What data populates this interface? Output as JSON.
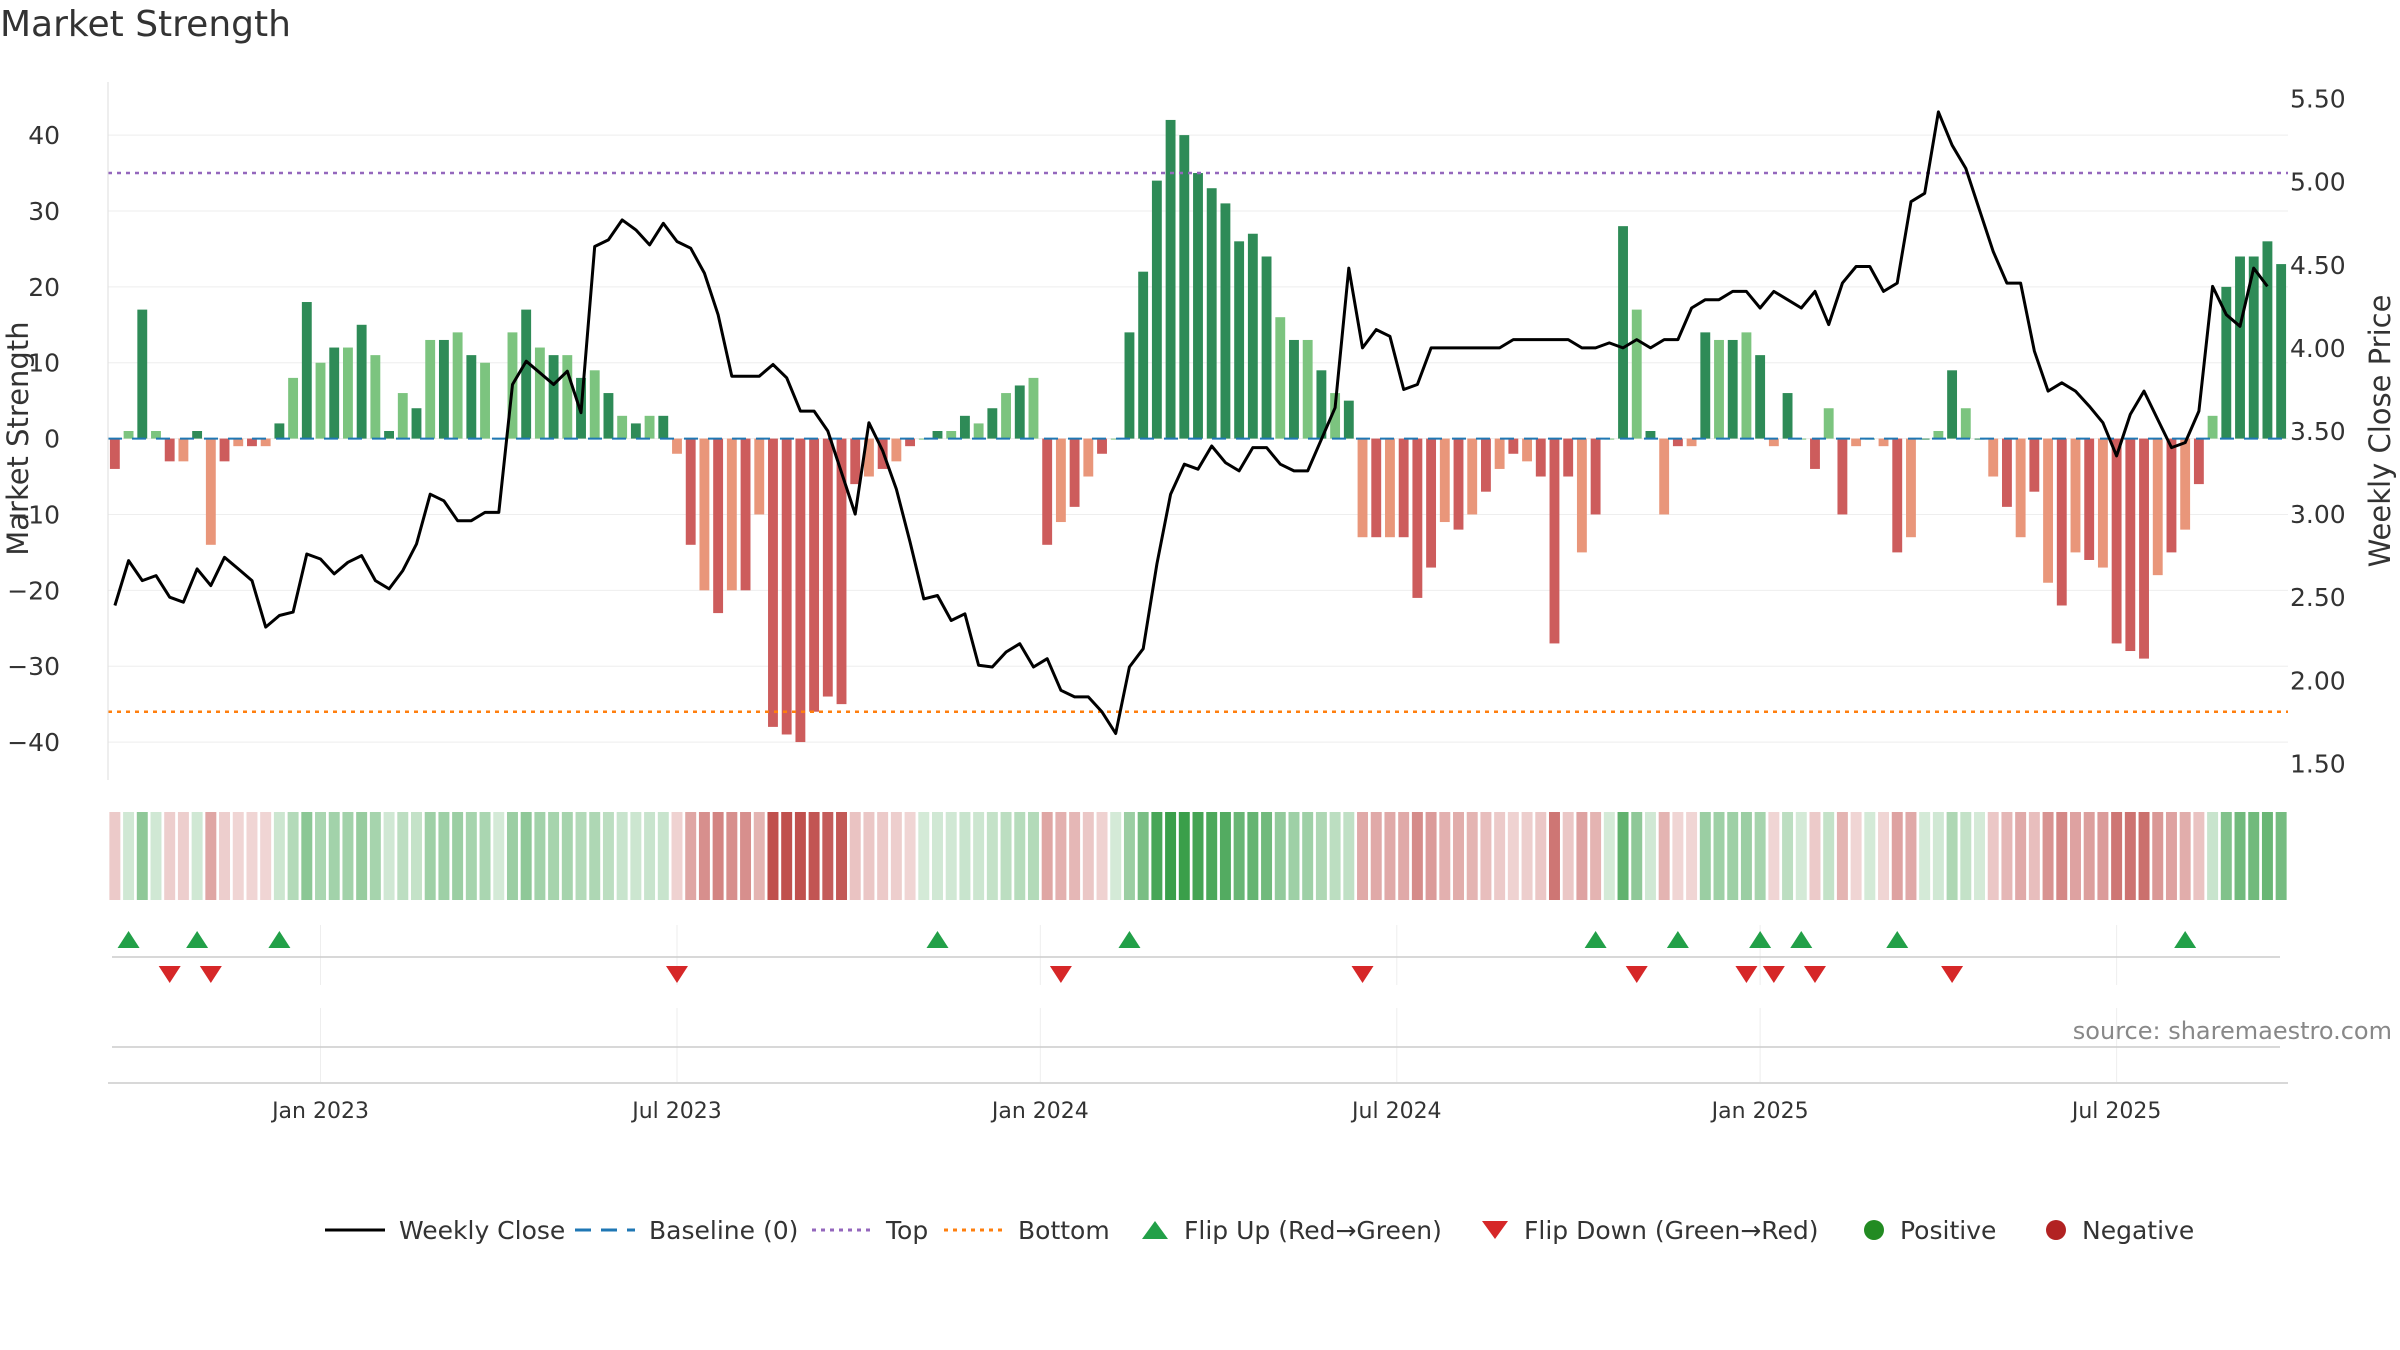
{
  "title": "Market Strength",
  "source": "source: sharemaestro.com",
  "colors": {
    "pos_strong": "#2e8b57",
    "pos_light": "#7cc47f",
    "neg_strong": "#cd5c5c",
    "neg_light": "#e9967a",
    "line": "#000000",
    "baseline": "#1f77b4",
    "top": "#9467bd",
    "bottom": "#ff7f0e",
    "flip_up": "#22a048",
    "flip_down": "#d62728",
    "heat_pos": "#3a9f4a",
    "heat_neg": "#c0504d"
  },
  "chart_data": {
    "type": "bar",
    "title": "Market Strength",
    "ylabel": "Market Strength",
    "y2label": "Weekly Close Price",
    "ylim": [
      -45,
      47
    ],
    "y2lim": [
      1.4,
      5.6
    ],
    "yticks": [
      40,
      30,
      20,
      10,
      0,
      -10,
      -20,
      -30,
      -40
    ],
    "y2ticks": [
      "5.50",
      "5.00",
      "4.50",
      "4.00",
      "3.50",
      "3.00",
      "2.50",
      "2.00",
      "1.50"
    ],
    "top_level": 35,
    "bottom_level": -36,
    "xticks": [
      {
        "label": "Jan 2023",
        "week": 15
      },
      {
        "label": "Jul 2023",
        "week": 41
      },
      {
        "label": "Jan 2024",
        "week": 67.5
      },
      {
        "label": "Jul 2024",
        "week": 93.5
      },
      {
        "label": "Jan 2025",
        "week": 120
      },
      {
        "label": "Jul 2025",
        "week": 146
      }
    ],
    "strength": [
      -4,
      1,
      17,
      1,
      -3,
      -3,
      1,
      -14,
      -3,
      -1,
      -1,
      -1,
      2,
      8,
      18,
      10,
      12,
      12,
      15,
      11,
      1,
      6,
      4,
      13,
      13,
      14,
      11,
      10,
      0,
      14,
      17,
      12,
      11,
      11,
      8,
      9,
      6,
      3,
      2,
      3,
      3,
      -2,
      -14,
      -20,
      -23,
      -20,
      -20,
      -10,
      -38,
      -39,
      -40,
      -36,
      -34,
      -35,
      -6,
      -5,
      -4,
      -3,
      -1,
      0,
      1,
      1,
      3,
      2,
      4,
      6,
      7,
      8,
      -14,
      -11,
      -9,
      -5,
      -2,
      0,
      14,
      22,
      34,
      42,
      40,
      35,
      33,
      31,
      26,
      27,
      24,
      16,
      13,
      13,
      9,
      6,
      5,
      -13,
      -13,
      -13,
      -13,
      -21,
      -17,
      -11,
      -12,
      -10,
      -7,
      -4,
      -2,
      -3,
      -5,
      -27,
      -5,
      -15,
      -10,
      0,
      28,
      17,
      1,
      -10,
      -1,
      -1,
      14,
      13,
      13,
      14,
      11,
      -1,
      6,
      0,
      -4,
      4,
      -10,
      -1,
      0,
      -1,
      -15,
      -13,
      0,
      1,
      9,
      4,
      0,
      -5,
      -9,
      -13,
      -7,
      -19,
      -22,
      -15,
      -16,
      -17,
      -27,
      -28,
      -29,
      -18,
      -15,
      -12,
      -6,
      3,
      20,
      24,
      24,
      26,
      23
    ],
    "close": [
      2.45,
      2.72,
      2.6,
      2.63,
      2.5,
      2.47,
      2.67,
      2.57,
      2.74,
      2.67,
      2.6,
      2.32,
      2.39,
      2.41,
      2.76,
      2.73,
      2.64,
      2.71,
      2.75,
      2.6,
      2.55,
      2.66,
      2.82,
      3.12,
      3.08,
      2.96,
      2.96,
      3.01,
      3.01,
      3.78,
      3.92,
      3.85,
      3.78,
      3.86,
      3.61,
      4.61,
      4.65,
      4.77,
      4.71,
      4.62,
      4.75,
      4.64,
      4.6,
      4.45,
      4.2,
      3.83,
      3.83,
      3.83,
      3.9,
      3.82,
      3.62,
      3.62,
      3.5,
      3.25,
      3.0,
      3.55,
      3.38,
      3.15,
      2.83,
      2.49,
      2.51,
      2.36,
      2.4,
      2.09,
      2.08,
      2.17,
      2.22,
      2.08,
      2.13,
      1.94,
      1.9,
      1.9,
      1.81,
      1.68,
      2.08,
      2.19,
      2.7,
      3.12,
      3.3,
      3.27,
      3.41,
      3.31,
      3.26,
      3.4,
      3.4,
      3.3,
      3.26,
      3.26,
      3.45,
      3.64,
      4.48,
      4.0,
      4.11,
      4.07,
      3.75,
      3.78,
      4.0,
      4.0,
      4.0,
      4.0,
      4.0,
      4.0,
      4.05,
      4.05,
      4.05,
      4.05,
      4.05,
      4.0,
      4.0,
      4.03,
      4.0,
      4.05,
      4.0,
      4.05,
      4.05,
      4.24,
      4.29,
      4.29,
      4.34,
      4.34,
      4.24,
      4.34,
      4.29,
      4.24,
      4.34,
      4.14,
      4.39,
      4.49,
      4.49,
      4.34,
      4.39,
      4.88,
      4.93,
      5.42,
      5.22,
      5.08,
      4.83,
      4.58,
      4.39,
      4.39,
      3.98,
      3.74,
      3.79,
      3.74,
      3.65,
      3.55,
      3.35,
      3.6,
      3.74,
      3.57,
      3.4,
      3.43,
      3.62,
      4.37,
      4.2,
      4.13,
      4.48,
      4.37
    ],
    "flip_up_weeks": [
      1,
      6,
      12,
      60,
      74,
      108,
      114,
      120,
      123,
      130,
      151
    ],
    "flip_down_weeks": [
      4,
      7,
      41,
      69,
      91,
      111,
      119,
      121,
      124,
      134
    ]
  },
  "legend": [
    {
      "label": "Weekly Close",
      "kind": "line"
    },
    {
      "label": "Baseline (0)",
      "kind": "dash-baseline"
    },
    {
      "label": "Top",
      "kind": "dot-top"
    },
    {
      "label": "Bottom",
      "kind": "dot-bottom"
    },
    {
      "label": "Flip Up (Red→Green)",
      "kind": "tri-up"
    },
    {
      "label": "Flip Down (Green→Red)",
      "kind": "tri-down"
    },
    {
      "label": "Positive",
      "kind": "dot-pos"
    },
    {
      "label": "Negative",
      "kind": "dot-neg"
    }
  ]
}
